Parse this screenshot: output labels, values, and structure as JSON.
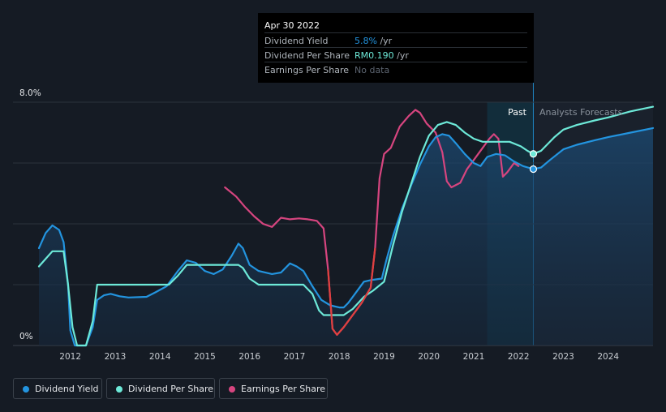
{
  "tooltip": {
    "date": "Apr 30 2022",
    "rows": [
      {
        "label": "Dividend Yield",
        "value": "5.8%",
        "unit": " /yr",
        "color": "#2394df"
      },
      {
        "label": "Dividend Per Share",
        "value": "RM0.190",
        "unit": " /yr",
        "color": "#6de9d8"
      },
      {
        "label": "Earnings Per Share",
        "value": "No data",
        "unit": "",
        "color": "#5c6470"
      }
    ]
  },
  "regions": {
    "past": "Past",
    "forecast": "Analysts Forecasts"
  },
  "legend": [
    {
      "label": "Dividend Yield",
      "color": "#2394df"
    },
    {
      "label": "Dividend Per Share",
      "color": "#6de9d8"
    },
    {
      "label": "Earnings Per Share",
      "color": "#d6457f"
    }
  ],
  "chart_data": {
    "type": "line",
    "x_ticks": [
      "2012",
      "2013",
      "2014",
      "2015",
      "2016",
      "2017",
      "2018",
      "2019",
      "2020",
      "2021",
      "2022",
      "2023",
      "2024"
    ],
    "y_tick_labels": [
      "8.0%",
      "0%"
    ],
    "ylim": [
      0,
      8
    ],
    "xlim": [
      2011.3,
      2025.0
    ],
    "past_forecast_boundary": 2022.33,
    "past_region_start": 2021.3,
    "grid": true,
    "series": [
      {
        "name": "Dividend Yield",
        "color": "#2394df",
        "points": [
          [
            2011.3,
            3.2
          ],
          [
            2011.45,
            3.7
          ],
          [
            2011.6,
            3.95
          ],
          [
            2011.75,
            3.8
          ],
          [
            2011.85,
            3.4
          ],
          [
            2011.95,
            2.0
          ],
          [
            2012.0,
            0.5
          ],
          [
            2012.1,
            0
          ],
          [
            2012.35,
            0
          ],
          [
            2012.5,
            0.6
          ],
          [
            2012.6,
            1.5
          ],
          [
            2012.75,
            1.65
          ],
          [
            2012.9,
            1.7
          ],
          [
            2013.1,
            1.62
          ],
          [
            2013.3,
            1.58
          ],
          [
            2013.7,
            1.6
          ],
          [
            2013.9,
            1.75
          ],
          [
            2014.15,
            1.95
          ],
          [
            2014.4,
            2.45
          ],
          [
            2014.6,
            2.8
          ],
          [
            2014.8,
            2.72
          ],
          [
            2015.0,
            2.45
          ],
          [
            2015.2,
            2.35
          ],
          [
            2015.4,
            2.5
          ],
          [
            2015.6,
            2.95
          ],
          [
            2015.75,
            3.35
          ],
          [
            2015.85,
            3.2
          ],
          [
            2016.0,
            2.65
          ],
          [
            2016.2,
            2.45
          ],
          [
            2016.5,
            2.35
          ],
          [
            2016.7,
            2.4
          ],
          [
            2016.9,
            2.7
          ],
          [
            2017.05,
            2.6
          ],
          [
            2017.2,
            2.45
          ],
          [
            2017.4,
            1.95
          ],
          [
            2017.6,
            1.5
          ],
          [
            2017.8,
            1.32
          ],
          [
            2018.0,
            1.25
          ],
          [
            2018.1,
            1.25
          ],
          [
            2018.2,
            1.4
          ],
          [
            2018.35,
            1.7
          ],
          [
            2018.55,
            2.1
          ],
          [
            2018.7,
            2.15
          ],
          [
            2018.95,
            2.2
          ],
          [
            2019.05,
            2.8
          ],
          [
            2019.2,
            3.6
          ],
          [
            2019.4,
            4.5
          ],
          [
            2019.6,
            5.25
          ],
          [
            2019.8,
            5.95
          ],
          [
            2020.0,
            6.55
          ],
          [
            2020.15,
            6.85
          ],
          [
            2020.3,
            6.95
          ],
          [
            2020.45,
            6.9
          ],
          [
            2020.6,
            6.65
          ],
          [
            2020.8,
            6.3
          ],
          [
            2021.0,
            6.0
          ],
          [
            2021.15,
            5.9
          ],
          [
            2021.3,
            6.2
          ],
          [
            2021.5,
            6.3
          ],
          [
            2021.7,
            6.25
          ],
          [
            2021.9,
            6.05
          ],
          [
            2022.1,
            5.9
          ],
          [
            2022.33,
            5.8
          ],
          [
            2022.5,
            5.85
          ],
          [
            2022.7,
            6.1
          ],
          [
            2023.0,
            6.45
          ],
          [
            2023.3,
            6.6
          ],
          [
            2023.7,
            6.75
          ],
          [
            2024.0,
            6.85
          ],
          [
            2024.5,
            7.0
          ],
          [
            2025.0,
            7.15
          ]
        ]
      },
      {
        "name": "Dividend Per Share",
        "color": "#6de9d8",
        "points": [
          [
            2011.3,
            2.6
          ],
          [
            2011.45,
            2.85
          ],
          [
            2011.6,
            3.1
          ],
          [
            2011.75,
            3.1
          ],
          [
            2011.85,
            3.1
          ],
          [
            2011.95,
            2.0
          ],
          [
            2012.05,
            0.6
          ],
          [
            2012.15,
            0
          ],
          [
            2012.35,
            0
          ],
          [
            2012.5,
            0.8
          ],
          [
            2012.6,
            2.0
          ],
          [
            2012.8,
            2.0
          ],
          [
            2013.5,
            2.0
          ],
          [
            2014.0,
            2.0
          ],
          [
            2014.2,
            2.0
          ],
          [
            2014.4,
            2.3
          ],
          [
            2014.6,
            2.65
          ],
          [
            2014.8,
            2.65
          ],
          [
            2015.5,
            2.65
          ],
          [
            2015.75,
            2.65
          ],
          [
            2015.85,
            2.55
          ],
          [
            2016.0,
            2.2
          ],
          [
            2016.2,
            2.0
          ],
          [
            2016.8,
            2.0
          ],
          [
            2017.2,
            2.0
          ],
          [
            2017.4,
            1.7
          ],
          [
            2017.55,
            1.15
          ],
          [
            2017.65,
            1.0
          ],
          [
            2018.0,
            1.0
          ],
          [
            2018.1,
            1.0
          ],
          [
            2018.3,
            1.2
          ],
          [
            2018.55,
            1.6
          ],
          [
            2018.75,
            1.8
          ],
          [
            2019.0,
            2.1
          ],
          [
            2019.2,
            3.3
          ],
          [
            2019.4,
            4.4
          ],
          [
            2019.6,
            5.3
          ],
          [
            2019.8,
            6.2
          ],
          [
            2020.0,
            6.9
          ],
          [
            2020.2,
            7.25
          ],
          [
            2020.4,
            7.35
          ],
          [
            2020.6,
            7.25
          ],
          [
            2020.8,
            7.0
          ],
          [
            2021.0,
            6.8
          ],
          [
            2021.2,
            6.7
          ],
          [
            2021.5,
            6.7
          ],
          [
            2021.8,
            6.7
          ],
          [
            2022.05,
            6.55
          ],
          [
            2022.2,
            6.4
          ],
          [
            2022.33,
            6.3
          ],
          [
            2022.5,
            6.4
          ],
          [
            2022.8,
            6.85
          ],
          [
            2023.0,
            7.1
          ],
          [
            2023.3,
            7.25
          ],
          [
            2023.7,
            7.4
          ],
          [
            2024.0,
            7.5
          ],
          [
            2024.5,
            7.7
          ],
          [
            2025.0,
            7.85
          ]
        ]
      },
      {
        "name": "Earnings Per Share",
        "color": "#d6457f",
        "points": [
          [
            2015.45,
            5.2
          ],
          [
            2015.7,
            4.9
          ],
          [
            2015.9,
            4.55
          ],
          [
            2016.1,
            4.25
          ],
          [
            2016.3,
            4.0
          ],
          [
            2016.5,
            3.9
          ],
          [
            2016.7,
            4.2
          ],
          [
            2016.9,
            4.15
          ],
          [
            2017.1,
            4.18
          ],
          [
            2017.3,
            4.15
          ],
          [
            2017.5,
            4.1
          ],
          [
            2017.65,
            3.85
          ],
          [
            2017.75,
            2.5
          ],
          [
            2017.85,
            0.55
          ],
          [
            2017.95,
            0.35
          ],
          [
            2018.1,
            0.6
          ],
          [
            2018.3,
            1.0
          ],
          [
            2018.5,
            1.4
          ],
          [
            2018.7,
            1.9
          ],
          [
            2018.8,
            3.2
          ],
          [
            2018.9,
            5.5
          ],
          [
            2019.0,
            6.3
          ],
          [
            2019.15,
            6.5
          ],
          [
            2019.35,
            7.2
          ],
          [
            2019.55,
            7.55
          ],
          [
            2019.7,
            7.75
          ],
          [
            2019.8,
            7.65
          ],
          [
            2019.95,
            7.3
          ],
          [
            2020.15,
            7.0
          ],
          [
            2020.3,
            6.35
          ],
          [
            2020.4,
            5.4
          ],
          [
            2020.5,
            5.2
          ],
          [
            2020.7,
            5.35
          ],
          [
            2020.85,
            5.8
          ],
          [
            2021.0,
            6.1
          ],
          [
            2021.2,
            6.5
          ],
          [
            2021.35,
            6.8
          ],
          [
            2021.45,
            6.95
          ],
          [
            2021.55,
            6.8
          ],
          [
            2021.65,
            5.55
          ],
          [
            2021.75,
            5.7
          ],
          [
            2021.9,
            6.0
          ],
          [
            2022.0,
            5.9
          ]
        ]
      }
    ],
    "markers": [
      {
        "series": "Dividend Yield",
        "x": 2022.33,
        "y": 5.8
      },
      {
        "series": "Dividend Per Share",
        "x": 2022.33,
        "y": 6.3
      }
    ]
  }
}
